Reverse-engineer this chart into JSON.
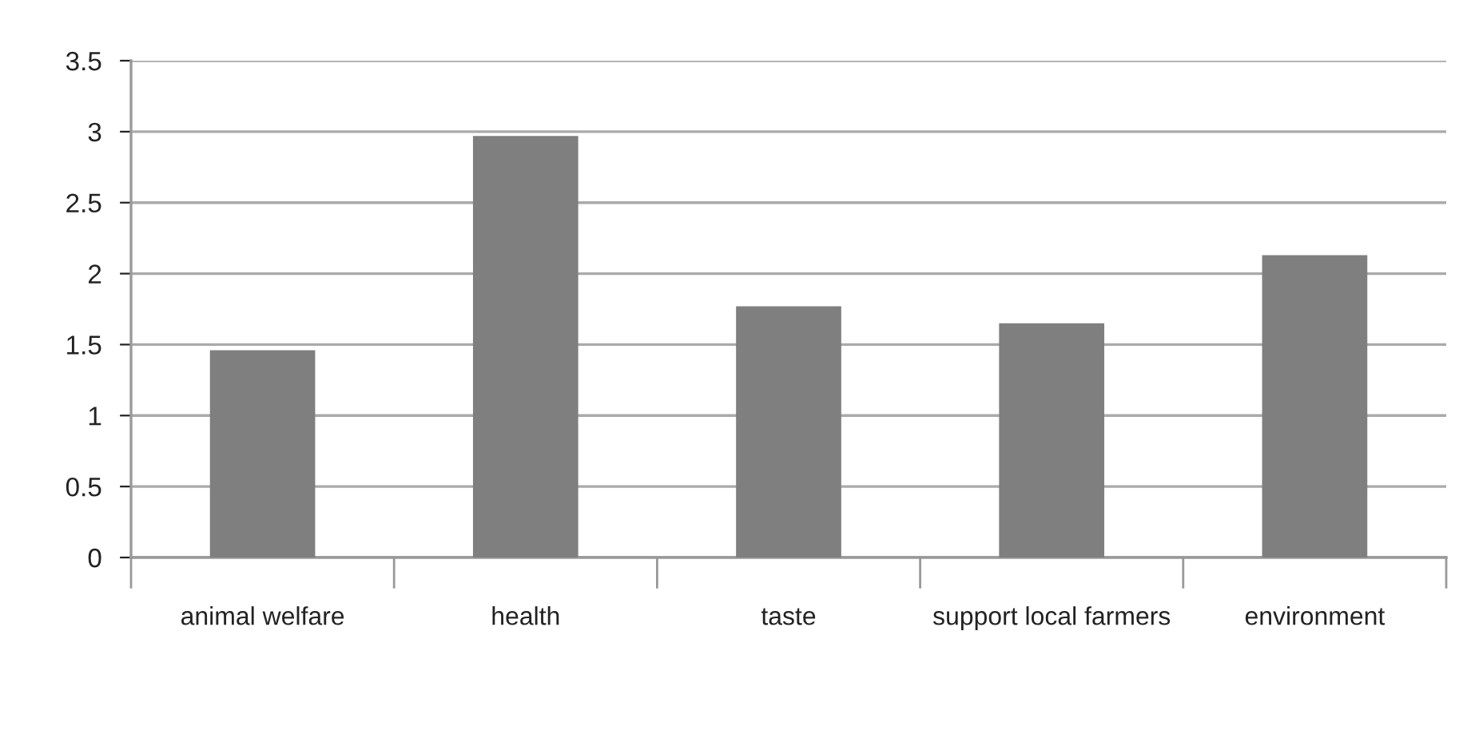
{
  "chart_data": {
    "type": "bar",
    "categories": [
      "animal welfare",
      "health",
      "taste",
      "support local farmers",
      "environment"
    ],
    "values": [
      1.46,
      2.97,
      1.77,
      1.65,
      2.13
    ],
    "color": "#7f7f7f",
    "ylim": [
      0,
      3.5
    ],
    "yticks": [
      0,
      0.5,
      1,
      1.5,
      2,
      2.5,
      3,
      3.5
    ],
    "grid": "y",
    "legend": false
  }
}
